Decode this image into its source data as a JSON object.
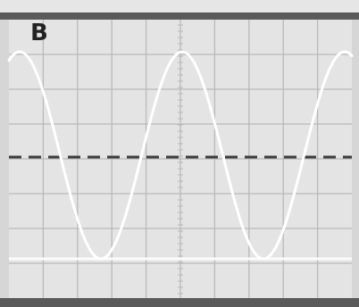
{
  "panel": {
    "label": "B"
  },
  "screen": {
    "background_color": "#e4e4e4",
    "frame_color": "#5a5a5a",
    "grid_color": "#b9b9b9",
    "trace_color": "#ffffff",
    "dashed_line_color": "#3c3c3c"
  },
  "graticule": {
    "major_columns": 10,
    "major_rows": 8
  },
  "waveform": {
    "type": "sine",
    "cycles_visible": 2,
    "phase_at_left": "maximum",
    "reference_line": "dashed"
  }
}
